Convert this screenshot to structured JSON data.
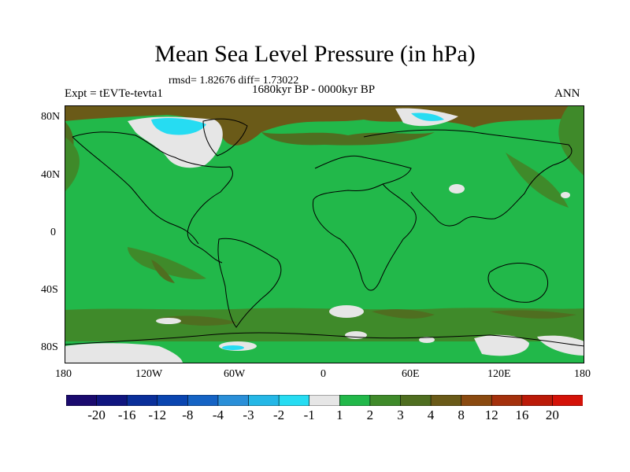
{
  "title": "Mean Sea Level Pressure (in hPa)",
  "stats": "rmsd= 1.82676 diff= 1.73022",
  "period": "1680kyr BP - 0000kyr BP",
  "experiment": "Expt = tEVTe-tevta1",
  "season": "ANN",
  "lat_ticks": [
    "80N",
    "40N",
    "0",
    "40S",
    "80S"
  ],
  "lon_ticks": [
    "180",
    "120W",
    "60W",
    "0",
    "60E",
    "120E",
    "180"
  ],
  "colorbar": {
    "labels": [
      "-20",
      "-16",
      "-12",
      "-8",
      "-4",
      "-3",
      "-2",
      "-1",
      "1",
      "2",
      "3",
      "4",
      "8",
      "12",
      "16",
      "20"
    ],
    "colors": [
      "#1a0a6e",
      "#10157f",
      "#0a2f9a",
      "#0a45b0",
      "#1563c4",
      "#2a8fd8",
      "#25b7e6",
      "#26dcf2",
      "#e6e6e6",
      "#22b84a",
      "#3f8a2a",
      "#4f6e20",
      "#6a5a18",
      "#8a4a10",
      "#a4300c",
      "#bb1a08",
      "#d41208"
    ]
  },
  "colors": {
    "main_field": "#22b84a",
    "positive_anomaly": "#6a5a18",
    "negative_anomaly": "#26dcf2",
    "neutral": "#e6e6e6"
  }
}
